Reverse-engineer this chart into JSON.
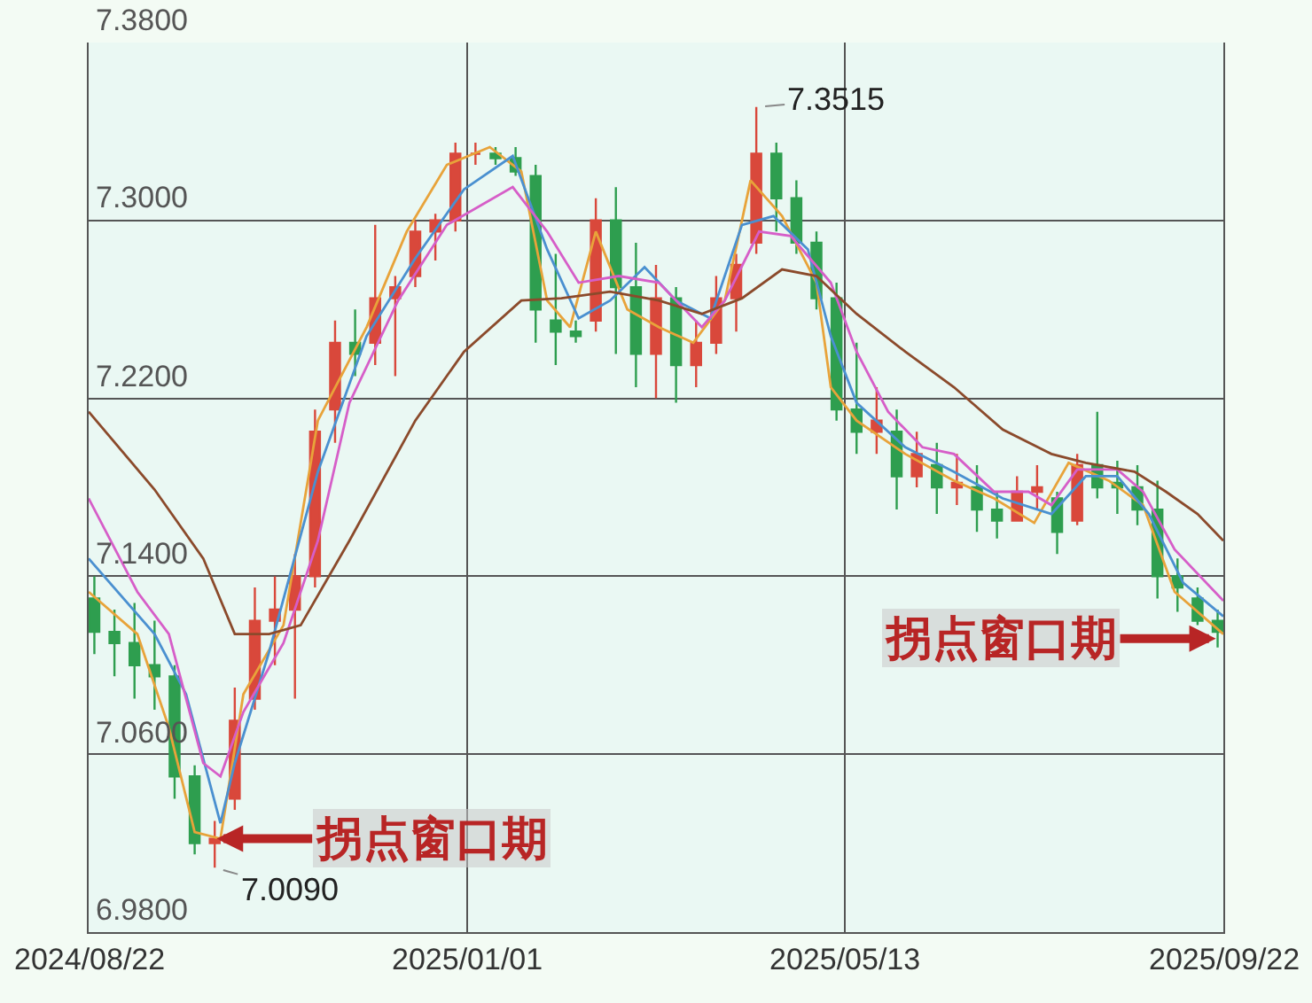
{
  "chart_data": {
    "type": "candlestick",
    "x": [
      "2024-08-24",
      "2024-08-31",
      "2024-09-07",
      "2024-09-14",
      "2024-09-21",
      "2024-09-28",
      "2024-10-05",
      "2024-10-12",
      "2024-10-19",
      "2024-10-26",
      "2024-11-02",
      "2024-11-09",
      "2024-11-16",
      "2024-11-23",
      "2024-11-30",
      "2024-12-07",
      "2024-12-14",
      "2024-12-21",
      "2024-12-28",
      "2025-01-04",
      "2025-01-11",
      "2025-01-18",
      "2025-01-25",
      "2025-02-01",
      "2025-02-08",
      "2025-02-15",
      "2025-02-22",
      "2025-03-01",
      "2025-03-08",
      "2025-03-15",
      "2025-03-22",
      "2025-03-29",
      "2025-04-05",
      "2025-04-12",
      "2025-04-19",
      "2025-04-26",
      "2025-05-03",
      "2025-05-10",
      "2025-05-17",
      "2025-05-24",
      "2025-05-31",
      "2025-06-07",
      "2025-06-14",
      "2025-06-21",
      "2025-06-28",
      "2025-07-05",
      "2025-07-12",
      "2025-07-19",
      "2025-07-26",
      "2025-08-02",
      "2025-08-09",
      "2025-08-16",
      "2025-08-23",
      "2025-08-30",
      "2025-09-06",
      "2025-09-13",
      "2025-09-20"
    ],
    "ohlc": [
      [
        7.13,
        7.14,
        7.105,
        7.115
      ],
      [
        7.115,
        7.125,
        7.095,
        7.11
      ],
      [
        7.11,
        7.128,
        7.085,
        7.1
      ],
      [
        7.1,
        7.12,
        7.08,
        7.095
      ],
      [
        7.095,
        7.1,
        7.04,
        7.05
      ],
      [
        7.05,
        7.055,
        7.015,
        7.02
      ],
      [
        7.02,
        7.03,
        7.009,
        7.022
      ],
      [
        7.04,
        7.09,
        7.035,
        7.075
      ],
      [
        7.085,
        7.135,
        7.08,
        7.12
      ],
      [
        7.12,
        7.14,
        7.1,
        7.125
      ],
      [
        7.125,
        7.15,
        7.085,
        7.14
      ],
      [
        7.14,
        7.215,
        7.135,
        7.205
      ],
      [
        7.215,
        7.255,
        7.2,
        7.245
      ],
      [
        7.245,
        7.26,
        7.23,
        7.24
      ],
      [
        7.245,
        7.298,
        7.235,
        7.265
      ],
      [
        7.265,
        7.275,
        7.23,
        7.27
      ],
      [
        7.275,
        7.3,
        7.27,
        7.295
      ],
      [
        7.295,
        7.303,
        7.282,
        7.3
      ],
      [
        7.3,
        7.335,
        7.295,
        7.33
      ],
      [
        7.33,
        7.335,
        7.325,
        7.33
      ],
      [
        7.33,
        7.333,
        7.325,
        7.328
      ],
      [
        7.328,
        7.333,
        7.32,
        7.322
      ],
      [
        7.32,
        7.325,
        7.245,
        7.26
      ],
      [
        7.255,
        7.285,
        7.235,
        7.25
      ],
      [
        7.25,
        7.255,
        7.245,
        7.248
      ],
      [
        7.255,
        7.31,
        7.25,
        7.3
      ],
      [
        7.3,
        7.315,
        7.24,
        7.27
      ],
      [
        7.27,
        7.29,
        7.225,
        7.24
      ],
      [
        7.24,
        7.28,
        7.22,
        7.265
      ],
      [
        7.265,
        7.27,
        7.218,
        7.235
      ],
      [
        7.235,
        7.255,
        7.225,
        7.245
      ],
      [
        7.245,
        7.275,
        7.24,
        7.265
      ],
      [
        7.265,
        7.285,
        7.25,
        7.28
      ],
      [
        7.29,
        7.351,
        7.285,
        7.33
      ],
      [
        7.33,
        7.335,
        7.295,
        7.31
      ],
      [
        7.31,
        7.318,
        7.285,
        7.29
      ],
      [
        7.29,
        7.295,
        7.26,
        7.265
      ],
      [
        7.265,
        7.272,
        7.21,
        7.215
      ],
      [
        7.215,
        7.245,
        7.195,
        7.205
      ],
      [
        7.205,
        7.225,
        7.195,
        7.21
      ],
      [
        7.205,
        7.215,
        7.17,
        7.185
      ],
      [
        7.185,
        7.205,
        7.18,
        7.195
      ],
      [
        7.19,
        7.2,
        7.168,
        7.18
      ],
      [
        7.18,
        7.195,
        7.172,
        7.182
      ],
      [
        7.18,
        7.19,
        7.16,
        7.17
      ],
      [
        7.17,
        7.178,
        7.157,
        7.165
      ],
      [
        7.165,
        7.185,
        7.165,
        7.178
      ],
      [
        7.178,
        7.19,
        7.17,
        7.18
      ],
      [
        7.175,
        7.178,
        7.15,
        7.16
      ],
      [
        7.165,
        7.195,
        7.163,
        7.19
      ],
      [
        7.19,
        7.214,
        7.175,
        7.18
      ],
      [
        7.182,
        7.192,
        7.168,
        7.18
      ],
      [
        7.18,
        7.19,
        7.163,
        7.17
      ],
      [
        7.17,
        7.183,
        7.13,
        7.14
      ],
      [
        7.14,
        7.148,
        7.124,
        7.135
      ],
      [
        7.13,
        7.135,
        7.118,
        7.12
      ],
      [
        7.12,
        7.125,
        7.108,
        7.115
      ]
    ],
    "colors": [
      "#2e9e4f",
      "#2e9e4f",
      "#2e9e4f",
      "#2e9e4f",
      "#2e9e4f",
      "#2e9e4f",
      "#d9483b",
      "#d9483b",
      "#d9483b",
      "#d9483b",
      "#d9483b",
      "#d9483b",
      "#d9483b",
      "#2e9e4f",
      "#d9483b",
      "#d9483b",
      "#d9483b",
      "#d9483b",
      "#d9483b",
      "#d9483b",
      "#2e9e4f",
      "#2e9e4f",
      "#2e9e4f",
      "#2e9e4f",
      "#2e9e4f",
      "#d9483b",
      "#2e9e4f",
      "#2e9e4f",
      "#d9483b",
      "#2e9e4f",
      "#d9483b",
      "#d9483b",
      "#d9483b",
      "#d9483b",
      "#2e9e4f",
      "#2e9e4f",
      "#2e9e4f",
      "#2e9e4f",
      "#2e9e4f",
      "#d9483b",
      "#2e9e4f",
      "#d9483b",
      "#2e9e4f",
      "#d9483b",
      "#2e9e4f",
      "#2e9e4f",
      "#d9483b",
      "#d9483b",
      "#2e9e4f",
      "#d9483b",
      "#2e9e4f",
      "#2e9e4f",
      "#2e9e4f",
      "#2e9e4f",
      "#2e9e4f",
      "#2e9e4f",
      "#2e9e4f"
    ],
    "series": [
      {
        "type": "line",
        "color": "#e8a33a",
        "x": [
          "2024-08-22",
          "2024-09-08",
          "2024-09-19",
          "2024-09-28",
          "2024-10-07",
          "2024-10-15",
          "2024-10-29",
          "2024-11-10",
          "2024-11-27",
          "2024-12-11",
          "2024-12-25",
          "2025-01-09",
          "2025-01-20",
          "2025-01-29",
          "2025-02-06",
          "2025-02-15",
          "2025-02-26",
          "2025-03-09",
          "2025-03-21",
          "2025-04-01",
          "2025-04-10",
          "2025-04-21",
          "2025-05-03",
          "2025-05-08",
          "2025-05-17",
          "2025-06-03",
          "2025-06-20",
          "2025-07-04",
          "2025-07-18",
          "2025-07-30",
          "2025-08-13",
          "2025-08-25",
          "2025-09-05",
          "2025-09-22"
        ],
        "values": [
          7.133,
          7.114,
          7.072,
          7.025,
          7.022,
          7.087,
          7.118,
          7.21,
          7.252,
          7.295,
          7.325,
          7.333,
          7.322,
          7.264,
          7.252,
          7.295,
          7.26,
          7.252,
          7.245,
          7.264,
          7.318,
          7.302,
          7.272,
          7.225,
          7.21,
          7.195,
          7.183,
          7.175,
          7.164,
          7.191,
          7.183,
          7.172,
          7.133,
          7.114
        ]
      },
      {
        "type": "line",
        "color": "#4a90d0",
        "x": [
          "2024-08-22",
          "2024-09-14",
          "2024-09-25",
          "2024-10-07",
          "2024-10-12",
          "2024-10-24",
          "2024-11-10",
          "2024-11-27",
          "2024-12-14",
          "2024-12-31",
          "2025-01-17",
          "2025-01-29",
          "2025-02-09",
          "2025-02-20",
          "2025-03-04",
          "2025-03-15",
          "2025-03-27",
          "2025-04-07",
          "2025-04-18",
          "2025-04-30",
          "2025-05-08",
          "2025-05-17",
          "2025-06-03",
          "2025-06-20",
          "2025-07-07",
          "2025-07-24",
          "2025-08-05",
          "2025-08-16",
          "2025-08-27",
          "2025-09-08",
          "2025-09-22"
        ],
        "values": [
          7.148,
          7.114,
          7.087,
          7.029,
          7.056,
          7.106,
          7.187,
          7.248,
          7.283,
          7.314,
          7.329,
          7.287,
          7.256,
          7.264,
          7.279,
          7.264,
          7.256,
          7.298,
          7.302,
          7.287,
          7.248,
          7.218,
          7.198,
          7.187,
          7.175,
          7.168,
          7.185,
          7.185,
          7.168,
          7.137,
          7.122
        ]
      },
      {
        "type": "line",
        "color": "#d65ec8",
        "x": [
          "2024-08-22",
          "2024-09-08",
          "2024-09-19",
          "2024-10-01",
          "2024-10-07",
          "2024-10-15",
          "2024-10-29",
          "2024-11-10",
          "2024-11-21",
          "2024-12-08",
          "2024-12-25",
          "2025-01-17",
          "2025-01-29",
          "2025-02-09",
          "2025-02-23",
          "2025-03-09",
          "2025-03-24",
          "2025-04-01",
          "2025-04-13",
          "2025-04-24",
          "2025-05-08",
          "2025-05-17",
          "2025-05-28",
          "2025-06-09",
          "2025-06-20",
          "2025-07-04",
          "2025-07-16",
          "2025-07-24",
          "2025-08-02",
          "2025-08-16",
          "2025-08-25",
          "2025-09-05",
          "2025-09-22"
        ],
        "values": [
          7.175,
          7.133,
          7.114,
          7.056,
          7.05,
          7.079,
          7.11,
          7.156,
          7.218,
          7.264,
          7.298,
          7.315,
          7.295,
          7.272,
          7.275,
          7.272,
          7.252,
          7.264,
          7.295,
          7.293,
          7.272,
          7.241,
          7.214,
          7.198,
          7.195,
          7.178,
          7.178,
          7.172,
          7.188,
          7.188,
          7.178,
          7.152,
          7.129
        ]
      },
      {
        "type": "line",
        "color": "#8b4a2b",
        "x": [
          "2024-08-22",
          "2024-09-14",
          "2024-10-01",
          "2024-10-12",
          "2024-10-24",
          "2024-11-04",
          "2024-11-21",
          "2024-12-14",
          "2024-12-31",
          "2025-01-20",
          "2025-02-03",
          "2025-02-20",
          "2025-03-09",
          "2025-03-24",
          "2025-04-07",
          "2025-04-21",
          "2025-05-03",
          "2025-05-17",
          "2025-06-03",
          "2025-06-20",
          "2025-07-07",
          "2025-07-24",
          "2025-08-05",
          "2025-08-22",
          "2025-09-02",
          "2025-09-13",
          "2025-09-22"
        ],
        "values": [
          7.214,
          7.179,
          7.148,
          7.114,
          7.114,
          7.118,
          7.156,
          7.21,
          7.241,
          7.264,
          7.265,
          7.268,
          7.264,
          7.258,
          7.265,
          7.278,
          7.275,
          7.258,
          7.241,
          7.225,
          7.206,
          7.195,
          7.191,
          7.187,
          7.178,
          7.168,
          7.156
        ]
      }
    ],
    "xlim": [
      "2024-08-22",
      "2025-09-22"
    ],
    "xticks": [
      {
        "value": "2024-08-22",
        "label": "2024/08/22"
      },
      {
        "value": "2025-01-01",
        "label": "2025/01/01"
      },
      {
        "value": "2025-05-13",
        "label": "2025/05/13"
      },
      {
        "value": "2025-09-22",
        "label": "2025/09/22"
      }
    ],
    "ylim": [
      6.98,
      7.38
    ],
    "yticks": [
      {
        "value": 6.98,
        "label": "6.9800"
      },
      {
        "value": 7.06,
        "label": "7.0600"
      },
      {
        "value": 7.14,
        "label": "7.1400"
      },
      {
        "value": 7.22,
        "label": "7.2200"
      },
      {
        "value": 7.3,
        "label": "7.3000"
      },
      {
        "value": 7.38,
        "label": "7.3800"
      }
    ],
    "grid": true,
    "annotations": [
      {
        "text": "7.3515",
        "x": "2025-04-12",
        "y": 7.351
      },
      {
        "text": "7.0090",
        "x": "2024-10-05",
        "y": 7.009
      },
      {
        "text": "拐点窗口期",
        "x": "2024-10-05",
        "y": 7.022
      },
      {
        "text": "拐点窗口期",
        "x": "2025-09-20",
        "y": 7.112
      }
    ]
  }
}
